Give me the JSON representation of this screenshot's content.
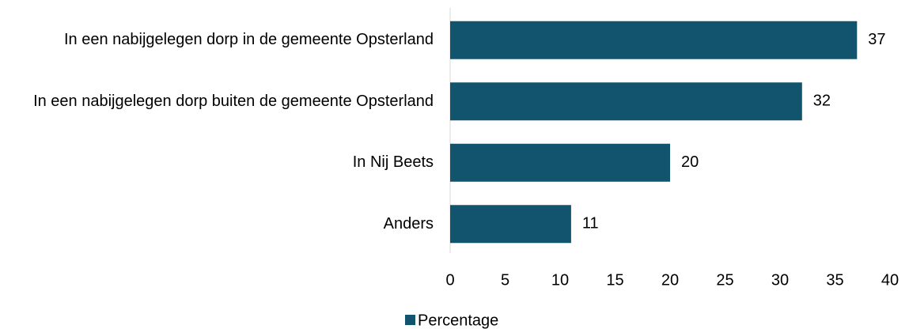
{
  "chart_data": {
    "type": "bar",
    "orientation": "horizontal",
    "categories": [
      "In een nabijgelegen dorp in de gemeente Opsterland",
      "In een nabijgelegen dorp buiten de gemeente Opsterland",
      "In Nij Beets",
      "Anders"
    ],
    "series": [
      {
        "name": "Percentage",
        "color": "#12536e",
        "values": [
          37,
          32,
          20,
          11
        ]
      }
    ],
    "xlim": [
      0,
      40
    ],
    "xticks": [
      0,
      5,
      10,
      15,
      20,
      25,
      30,
      35,
      40
    ],
    "grid": false,
    "legend": "bottom"
  }
}
